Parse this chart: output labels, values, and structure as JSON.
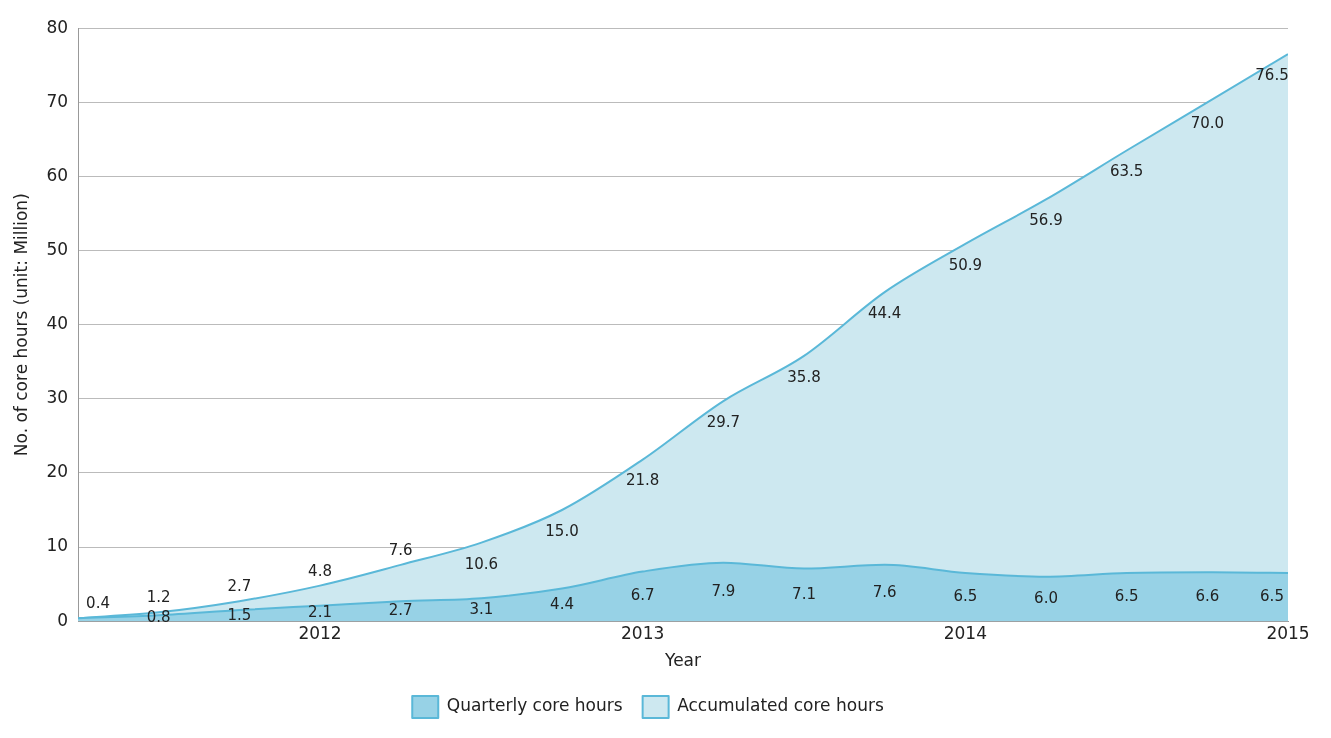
{
  "chart_data": {
    "type": "area",
    "xlabel": "Year",
    "ylabel": "No. of core hours (unit: Million)",
    "x": [
      2011.25,
      2011.5,
      2011.75,
      2012,
      2012.25,
      2012.5,
      2012.75,
      2013,
      2013.25,
      2013.5,
      2013.75,
      2014,
      2014.25,
      2014.5,
      2014.75,
      2015
    ],
    "series": [
      {
        "name": "Accumulated core hours",
        "color": "#cde8f0",
        "values": [
          0.4,
          1.2,
          2.7,
          4.8,
          7.6,
          10.6,
          15.0,
          21.8,
          29.7,
          35.8,
          44.4,
          50.9,
          56.9,
          63.5,
          70.0,
          76.5
        ],
        "value_labels": [
          "0.4",
          "1.2",
          "2.7",
          "4.8",
          "7.6",
          "10.6",
          "15.0",
          "21.8",
          "29.7",
          "35.8",
          "44.4",
          "50.9",
          "56.9",
          "63.5",
          "70.0",
          "76.5"
        ]
      },
      {
        "name": "Quarterly core hours",
        "color": "#97d2e6",
        "values": [
          0.4,
          0.8,
          1.5,
          2.1,
          2.7,
          3.1,
          4.4,
          6.7,
          7.9,
          7.1,
          7.6,
          6.5,
          6.0,
          6.5,
          6.6,
          6.5
        ],
        "value_labels": [
          null,
          "0.8",
          "1.5",
          "2.1",
          "2.7",
          "3.1",
          "4.4",
          "6.7",
          "7.9",
          "7.1",
          "7.6",
          "6.5",
          "6.0",
          "6.5",
          "6.6",
          "6.5"
        ]
      }
    ],
    "xlim": [
      2011.25,
      2015
    ],
    "xticks": [
      2012,
      2013,
      2014,
      2015
    ],
    "ylim": [
      0,
      80
    ],
    "yticks": [
      0,
      10,
      20,
      30,
      40,
      50,
      60,
      70,
      80
    ],
    "grid": "y",
    "legend": "bottom",
    "marker": "none"
  }
}
